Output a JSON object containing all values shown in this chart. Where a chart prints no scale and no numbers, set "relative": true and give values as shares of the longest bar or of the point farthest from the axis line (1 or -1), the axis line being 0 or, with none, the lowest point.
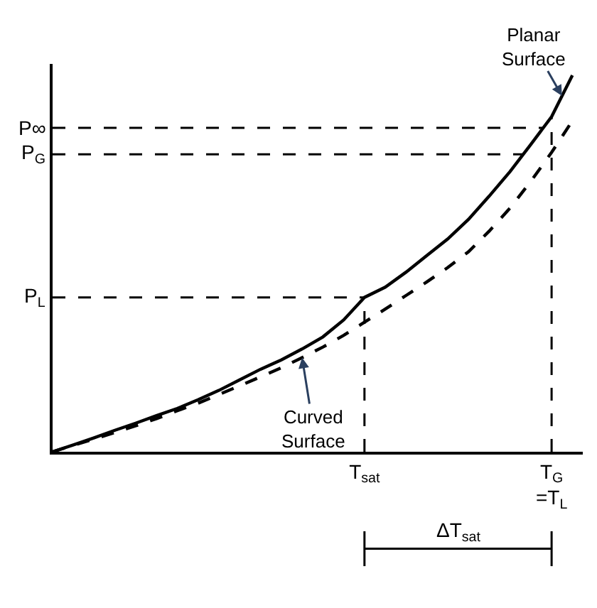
{
  "chart_data": {
    "type": "line",
    "relative": true,
    "grid": "x",
    "legend": false,
    "marker": "none",
    "categories": [
      null,
      null,
      null,
      null,
      null,
      null,
      null,
      null,
      null,
      null,
      null,
      null,
      null,
      null,
      null,
      "T$_{sat}$",
      null,
      null,
      null,
      null,
      null,
      null,
      null,
      null,
      "T$_{G}$\n=T$_{L}$",
      null
    ],
    "series": [
      {
        "name": "Planar Surface",
        "color": "#000000",
        "line_style": "solid",
        "values": [
          0,
          0.018,
          0.037,
          0.057,
          0.076,
          0.096,
          0.115,
          0.138,
          0.163,
          0.191,
          0.219,
          0.244,
          0.273,
          0.305,
          0.35,
          0.41,
          0.437,
          0.477,
          0.521,
          0.565,
          0.617,
          0.679,
          0.744,
          0.816,
          0.89,
          1.0
        ]
      },
      {
        "name": "Curved Surface",
        "color": "#000000",
        "line_style": "dashed",
        "values": [
          0,
          0.017,
          0.034,
          0.051,
          0.069,
          0.088,
          0.109,
          0.129,
          0.152,
          0.175,
          0.199,
          0.223,
          0.25,
          0.278,
          0.309,
          0.344,
          0.379,
          0.415,
          0.451,
          0.489,
          0.531,
          0.586,
          0.647,
          0.718,
          0.795,
          0.879
        ]
      }
    ],
    "ref_lines": [
      {
        "axis": "y",
        "value": 0.86,
        "label": "P∞",
        "line_style": "dashed"
      },
      {
        "axis": "y",
        "value": 0.79,
        "label": "P$_{G}$",
        "line_style": "dashed"
      },
      {
        "axis": "y",
        "value": 0.41,
        "label": "P$_{L}$",
        "line_style": "dashed"
      }
    ],
    "annotations": [
      "ΔT$_{sat}$"
    ]
  }
}
